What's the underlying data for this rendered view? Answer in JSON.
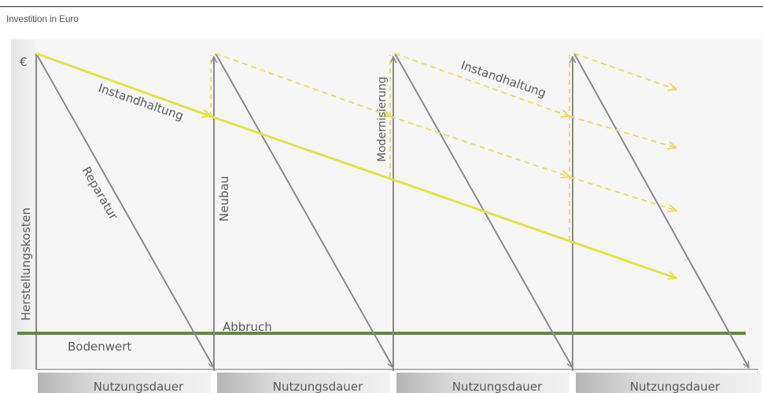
{
  "caption": "Investition in Euro",
  "diagram": {
    "y_axis_symbol": "€",
    "y_axis_label": "Herstellungskosten",
    "labels": {
      "instandhaltung_1": "Instandhaltung",
      "instandhaltung_2": "Instandhaltung",
      "reparatur": "Reparatur",
      "neubau": "Neubau",
      "modernisierung": "Modernisierung",
      "abbruch": "Abbruch",
      "bodenwert": "Bodenwert"
    },
    "periods": [
      "Nutzungsdauer",
      "Nutzungsdauer",
      "Nutzungsdauer",
      "Nutzungsdauer"
    ],
    "colors": {
      "instandhaltung": "#e2e24a",
      "instandhaltung_dashed": "#ecd86a",
      "bodenwert": "#5f8a3a",
      "arrows": "#8a8a8a",
      "period_bar": "#c8c8c8"
    }
  }
}
